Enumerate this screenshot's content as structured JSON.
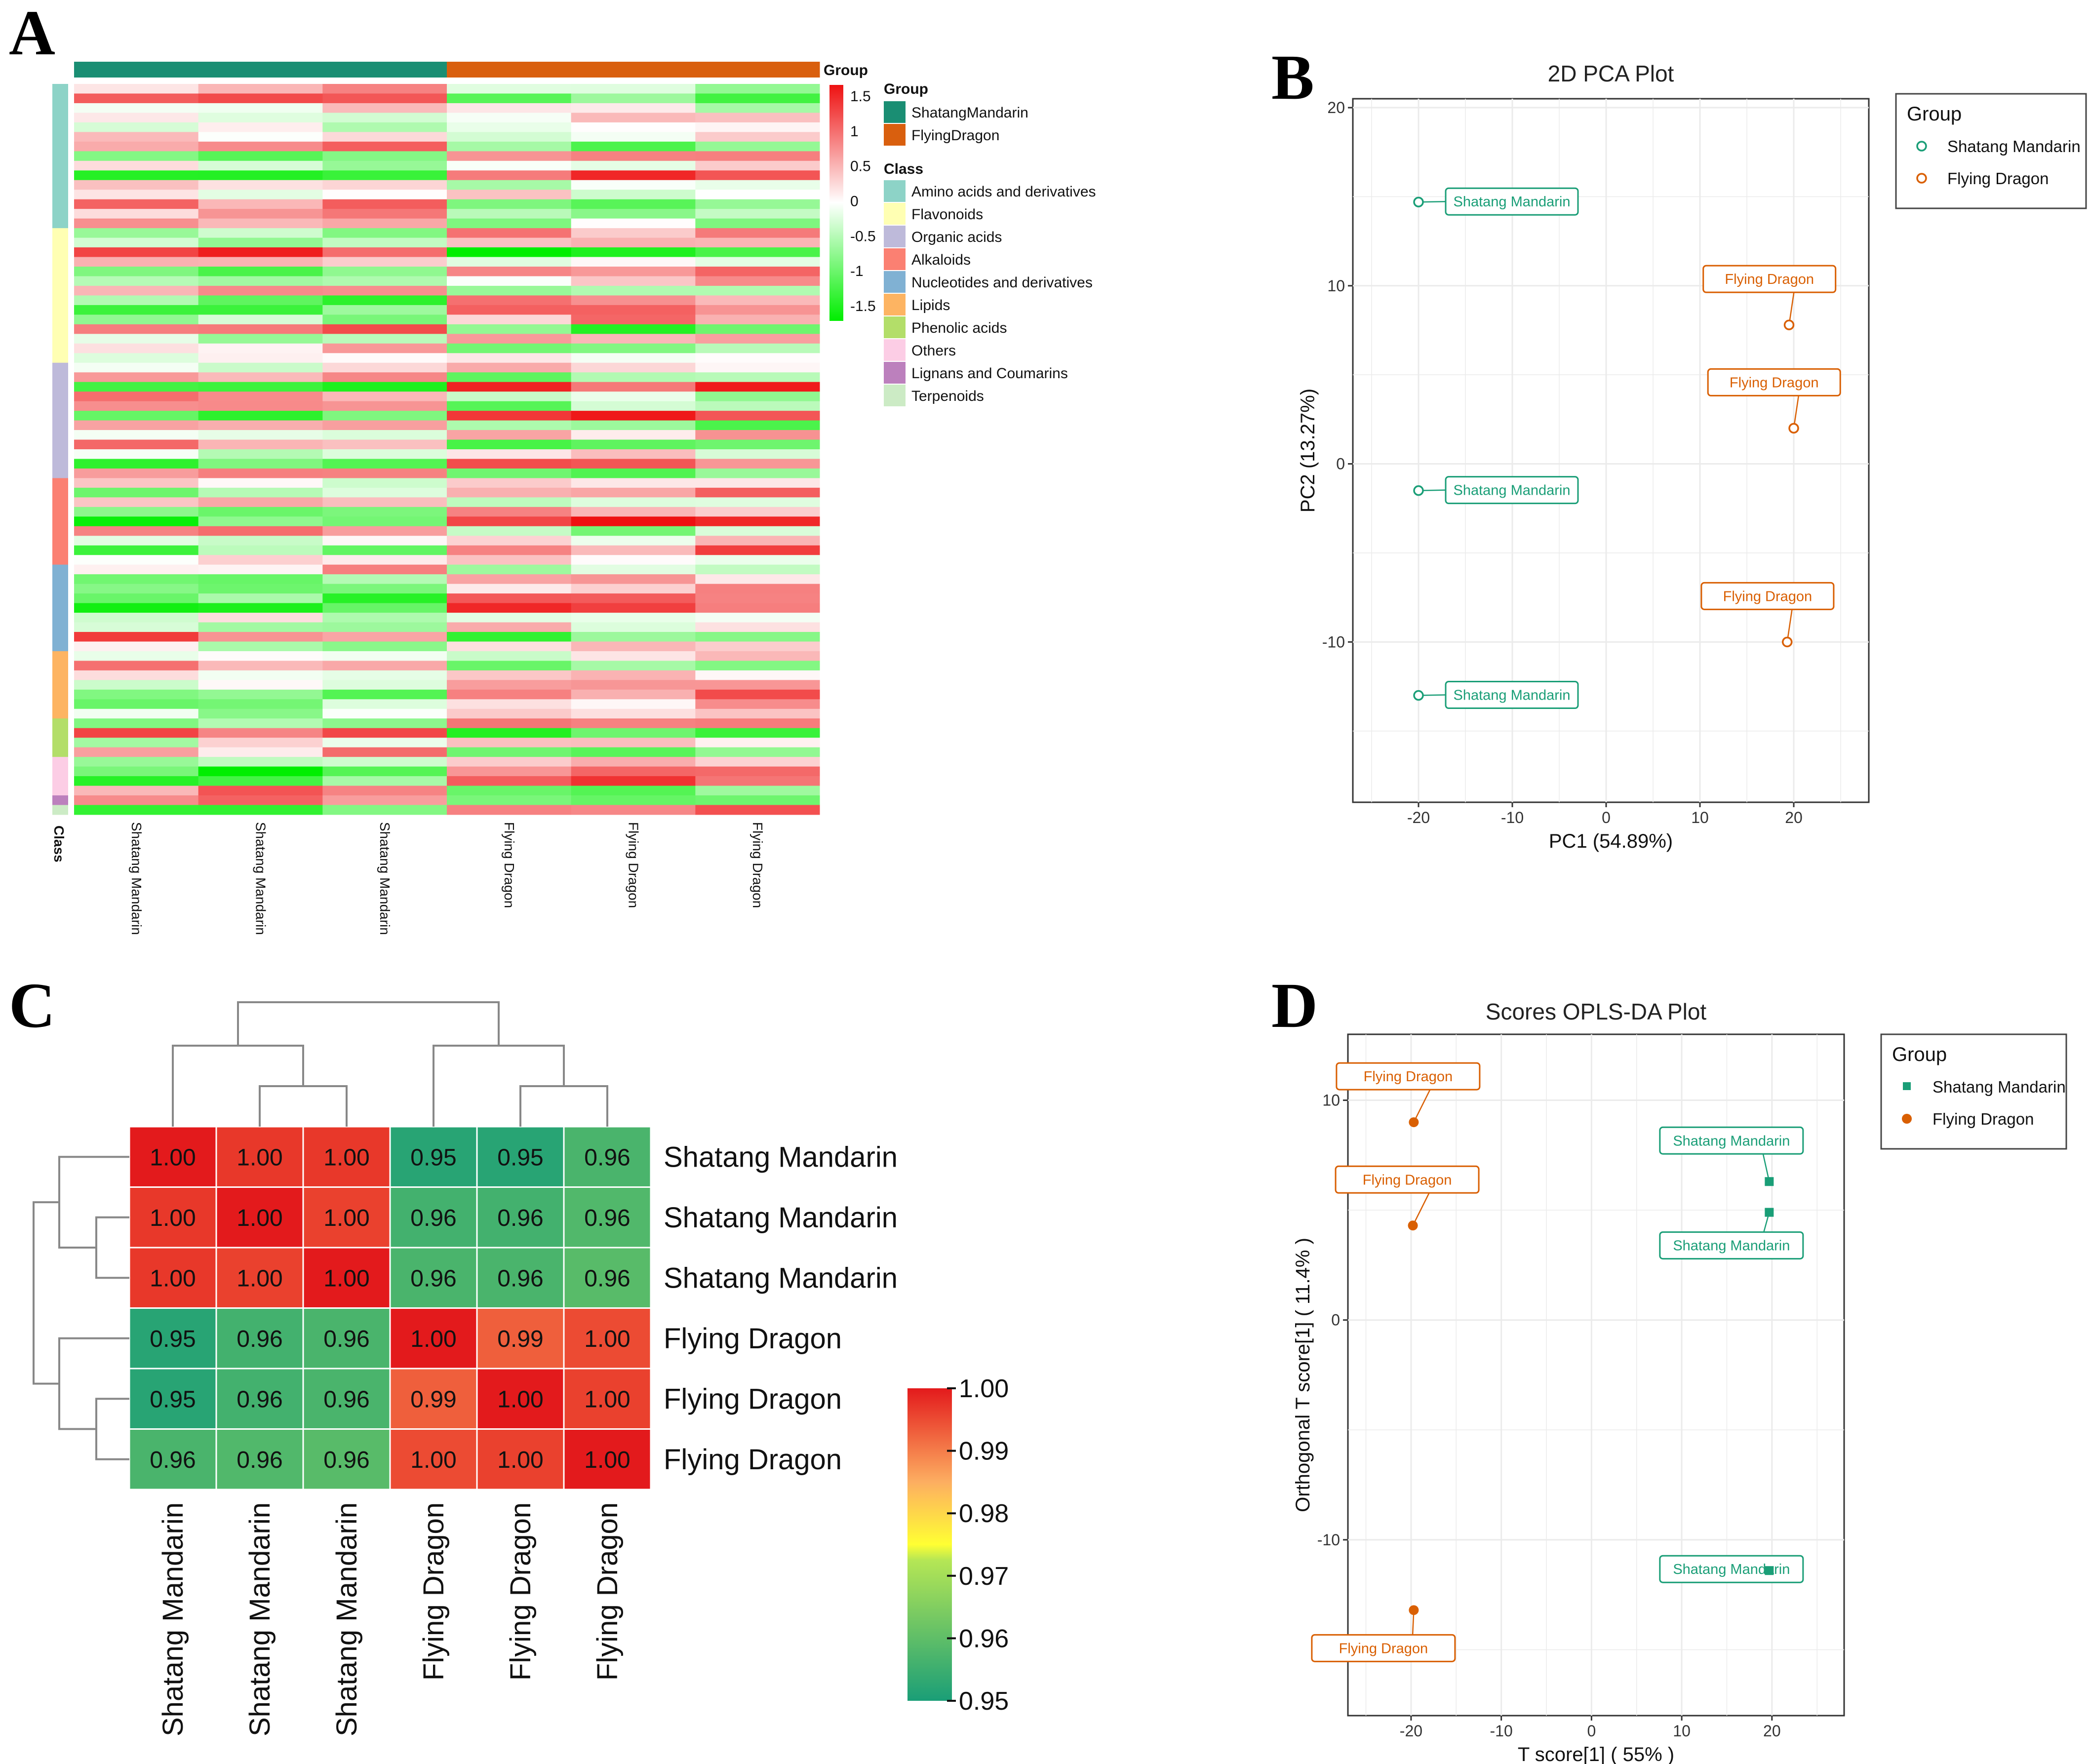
{
  "chart_data": [
    {
      "panel": "A",
      "type": "heatmap",
      "title": "",
      "columns": [
        "Shatang Mandarin",
        "Shatang Mandarin",
        "Shatang Mandarin",
        "Flying Dragon",
        "Flying Dragon",
        "Flying Dragon"
      ],
      "group_annotation": [
        "ShatangMandarin",
        "ShatangMandarin",
        "ShatangMandarin",
        "FlyingDragon",
        "FlyingDragon",
        "FlyingDragon"
      ],
      "annotation_labels": {
        "top": "Group",
        "side": "Class"
      },
      "scale_ticks": [
        "1.5",
        "1",
        "0.5",
        "0",
        "-0.5",
        "-1",
        "-1.5"
      ],
      "color_range": [
        -1.5,
        1.5
      ],
      "colors": {
        "low": "#00ee00",
        "mid": "#ffffff",
        "high": "#ee1111"
      },
      "legend_group": {
        "title": "Group",
        "items": [
          {
            "label": "ShatangMandarin",
            "color": "#1a8e73"
          },
          {
            "label": "FlyingDragon",
            "color": "#d95f0e"
          }
        ]
      },
      "legend_class": {
        "title": "Class",
        "items": [
          {
            "label": "Amino acids and derivatives",
            "color": "#8dd3c7",
            "rows": 15
          },
          {
            "label": "Flavonoids",
            "color": "#ffffb3",
            "rows": 14
          },
          {
            "label": "Organic acids",
            "color": "#bebada",
            "rows": 12
          },
          {
            "label": "Alkaloids",
            "color": "#fb8072",
            "rows": 9
          },
          {
            "label": "Nucleotides and derivatives",
            "color": "#80b1d3",
            "rows": 9
          },
          {
            "label": "Lipids",
            "color": "#fdb462",
            "rows": 7
          },
          {
            "label": "Phenolic acids",
            "color": "#b3de69",
            "rows": 4
          },
          {
            "label": "Others",
            "color": "#fccde5",
            "rows": 4
          },
          {
            "label": "Lignans and Coumarins",
            "color": "#bc80bd",
            "rows": 1
          },
          {
            "label": "Terpenoids",
            "color": "#ccebc5",
            "rows": 1
          }
        ]
      }
    },
    {
      "panel": "B",
      "type": "scatter",
      "title": "2D PCA Plot",
      "xlabel": "PC1 (54.89%)",
      "ylabel": "PC2 (13.27%)",
      "xlim": [
        -27,
        28
      ],
      "ylim": [
        -19,
        20.5
      ],
      "xticks": [
        -20,
        -10,
        0,
        10,
        20
      ],
      "yticks": [
        -10,
        0,
        10,
        20
      ],
      "legend": {
        "title": "Group",
        "position": "right"
      },
      "series": [
        {
          "name": "Shatang Mandarin",
          "color": "#1a9e77",
          "marker": "open-circle",
          "points": [
            [
              -20,
              14.7
            ],
            [
              -20,
              -1.5
            ],
            [
              -20,
              -13
            ]
          ],
          "labels": [
            "Shatang Mandarin",
            "Shatang Mandarin",
            "Shatang Mandarin"
          ]
        },
        {
          "name": "Flying Dragon",
          "color": "#d95f02",
          "marker": "open-circle",
          "points": [
            [
              19.5,
              7.8
            ],
            [
              20,
              2
            ],
            [
              19.3,
              -10
            ]
          ],
          "labels": [
            "Flying  Dragon",
            "Flying  Dragon",
            "Flying  Dragon"
          ]
        }
      ]
    },
    {
      "panel": "C",
      "type": "heatmap",
      "title": "",
      "row_labels": [
        "Shatang Mandarin",
        "Shatang Mandarin",
        "Shatang Mandarin",
        "Flying Dragon",
        "Flying Dragon",
        "Flying Dragon"
      ],
      "col_labels": [
        "Shatang Mandarin",
        "Shatang Mandarin",
        "Shatang Mandarin",
        "Flying Dragon",
        "Flying Dragon",
        "Flying Dragon"
      ],
      "cell_text": [
        [
          "1.00",
          "1.00",
          "1.00",
          "0.95",
          "0.95",
          "0.96"
        ],
        [
          "1.00",
          "1.00",
          "1.00",
          "0.96",
          "0.96",
          "0.96"
        ],
        [
          "1.00",
          "1.00",
          "1.00",
          "0.96",
          "0.96",
          "0.96"
        ],
        [
          "0.95",
          "0.96",
          "0.96",
          "1.00",
          "0.99",
          "1.00"
        ],
        [
          "0.95",
          "0.96",
          "0.96",
          "0.99",
          "1.00",
          "1.00"
        ],
        [
          "0.96",
          "0.96",
          "0.96",
          "1.00",
          "1.00",
          "1.00"
        ]
      ],
      "values": [
        [
          1.0,
          0.997,
          0.997,
          0.952,
          0.952,
          0.957
        ],
        [
          0.997,
          1.0,
          0.996,
          0.956,
          0.956,
          0.958
        ],
        [
          0.997,
          0.996,
          1.0,
          0.957,
          0.957,
          0.959
        ],
        [
          0.952,
          0.956,
          0.957,
          1.0,
          0.993,
          0.995
        ],
        [
          0.952,
          0.956,
          0.957,
          0.993,
          1.0,
          0.996
        ],
        [
          0.957,
          0.958,
          0.959,
          0.995,
          0.996,
          1.0
        ]
      ],
      "scale_ticks": [
        "1.00",
        "0.99",
        "0.98",
        "0.97",
        "0.96",
        "0.95"
      ],
      "color_range": [
        0.95,
        1.0
      ]
    },
    {
      "panel": "D",
      "type": "scatter",
      "title": "Scores OPLS-DA Plot",
      "xlabel": "T score[1] ( 55% )",
      "ylabel": "Orthogonal T score[1] ( 11.4% )",
      "xlim": [
        -27,
        28
      ],
      "ylim": [
        -18,
        13
      ],
      "xticks": [
        -20,
        -10,
        0,
        10,
        20
      ],
      "yticks": [
        -10,
        0,
        10
      ],
      "legend": {
        "title": "Group",
        "position": "right"
      },
      "series": [
        {
          "name": "Shatang Mandarin",
          "color": "#1a9e77",
          "marker": "square",
          "points": [
            [
              19.7,
              6.3
            ],
            [
              19.7,
              4.9
            ],
            [
              19.7,
              -11.4
            ]
          ],
          "labels": [
            "Shatang Mandarin",
            "Shatang Mandarin",
            "Shatang Mandarin"
          ]
        },
        {
          "name": "Flying  Dragon",
          "color": "#d95f02",
          "marker": "dot",
          "points": [
            [
              -19.7,
              9.0
            ],
            [
              -19.8,
              4.3
            ],
            [
              -19.7,
              -13.2
            ]
          ],
          "labels": [
            "Flying Dragon",
            "Flying Dragon",
            "Flying Dragon"
          ]
        }
      ]
    }
  ],
  "panel_letters": [
    "A",
    "B",
    "C",
    "D"
  ]
}
